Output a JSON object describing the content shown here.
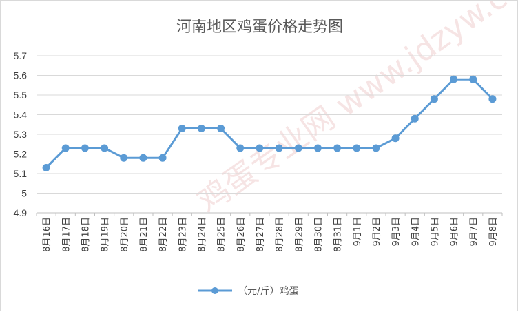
{
  "chart_data": {
    "type": "line",
    "title": "河南地区鸡蛋价格走势图",
    "categories": [
      "8月16日",
      "8月17日",
      "8月18日",
      "8月19日",
      "8月20日",
      "8月21日",
      "8月22日",
      "8月23日",
      "8月24日",
      "8月25日",
      "8月26日",
      "8月27日",
      "8月28日",
      "8月29日",
      "8月30日",
      "8月31日",
      "9月1日",
      "9月2日",
      "9月3日",
      "9月4日",
      "9月5日",
      "9月6日",
      "9月7日",
      "9月8日"
    ],
    "series": [
      {
        "name": "（元/斤）鸡蛋",
        "values": [
          5.13,
          5.23,
          5.23,
          5.23,
          5.18,
          5.18,
          5.18,
          5.33,
          5.33,
          5.33,
          5.23,
          5.23,
          5.23,
          5.23,
          5.23,
          5.23,
          5.23,
          5.23,
          5.28,
          5.38,
          5.48,
          5.58,
          5.58,
          5.48
        ]
      }
    ],
    "yticks": [
      "4.9",
      "5",
      "5.1",
      "5.2",
      "5.3",
      "5.4",
      "5.5",
      "5.6",
      "5.7"
    ],
    "ylim": [
      4.9,
      5.7
    ],
    "grid": true,
    "legend_position": "bottom",
    "series_color": "#5b9bd5",
    "watermark": "鸡蛋专业网 www.jdzyw.com"
  }
}
